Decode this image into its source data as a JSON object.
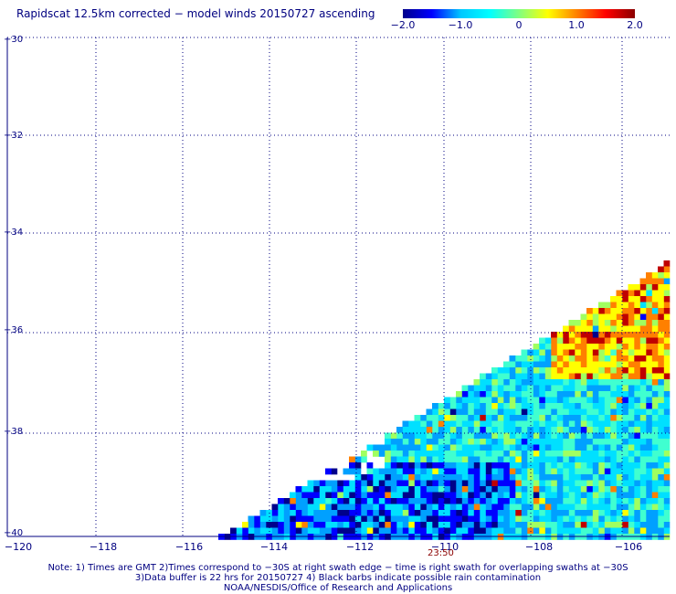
{
  "title": "Rapidscat 12.5km corrected − model winds 20150727 ascending",
  "colorbar": {
    "ticks": [
      "−2.0",
      "−1.0",
      "0",
      "1.0",
      "2.0"
    ],
    "range": [
      -2.0,
      2.0
    ],
    "colors": [
      "#00008b",
      "#0000ff",
      "#00c8ff",
      "#00ffff",
      "#80ff80",
      "#ffff00",
      "#ff8000",
      "#ff0000",
      "#8b0000"
    ]
  },
  "map": {
    "lat_labels": [
      "−30",
      "−32",
      "−34",
      "−36",
      "−38",
      "−40"
    ],
    "lon_labels": [
      "−120",
      "−118",
      "−116",
      "−114",
      "−112",
      "−110",
      "−108",
      "−106"
    ],
    "lat_range": [
      -30,
      -40
    ],
    "lon_range": [
      -120,
      -104.6
    ],
    "grid": "dotted",
    "swath_edge": "diagonal from lower-left to upper-right, data to the lower-right"
  },
  "time_label": "23:50",
  "notes": [
    "Note: 1) Times are GMT 2)Times correspond to −30S at right swath edge − time is right swath for overlapping swaths at −30S",
    "3)Data buffer is 22 hrs for 20150727 4) Black barbs indicate possible rain contamination",
    "NOAA/NESDIS/Office of Research and Applications"
  ]
}
